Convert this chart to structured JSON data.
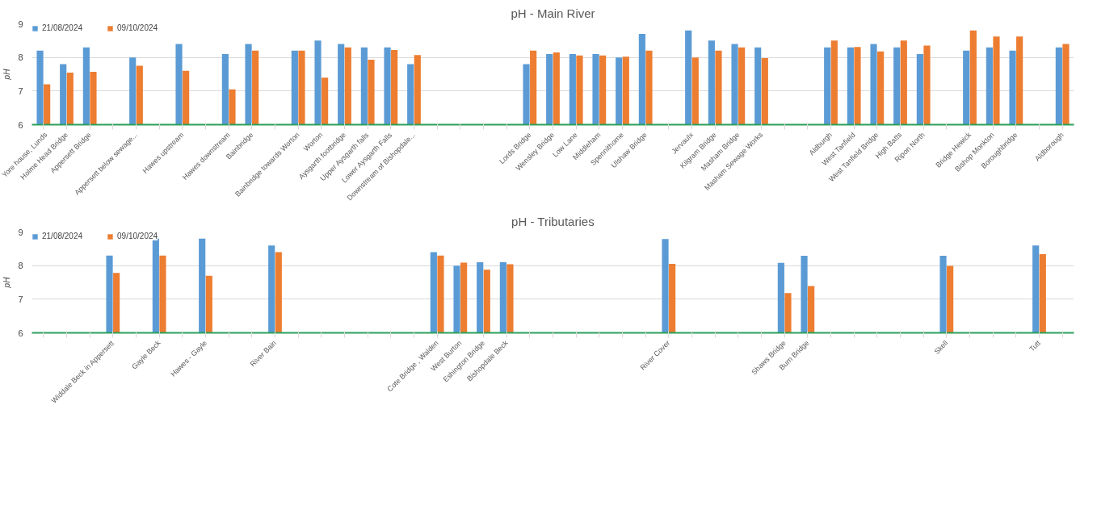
{
  "chart_data": [
    {
      "type": "bar",
      "title": "pH - Main River",
      "ylabel": "pH",
      "ylim": [
        6,
        9
      ],
      "yticks": [
        6,
        7,
        8,
        9
      ],
      "grid": "y",
      "legend": "top left",
      "categories": [
        "Yore house, Lunds",
        "Holme Head Bridge",
        "Appersett Bridge",
        null,
        "Appersett below sewage...",
        null,
        "Hawes upstream",
        null,
        "Hawes downstream",
        "Bainbridge",
        null,
        "Bainbridge towards Worton",
        "Worton",
        "Aysgarth footbridge",
        "Upper Aysgarth falls",
        "Lower Aysgarth Falls",
        "Downstream of Bishopdale...",
        null,
        null,
        null,
        null,
        "Lords Bridge",
        "Wensley Bridge",
        "Low Lane",
        "Middleham",
        "Spennithorne",
        "Ulshaw Bridge",
        null,
        "Jervaulx",
        "Kilgram Bridge",
        "Masham Bridge",
        "Masham Sewage Works",
        null,
        null,
        "Aldburgh",
        "West Tanfield",
        "West Tanfield Bridge",
        "High Batts",
        "Ripon North",
        null,
        "Bridge Hewick",
        "Bishop Monkton",
        "Boroughbridge",
        null,
        "Aldborough"
      ],
      "series": [
        {
          "name": "21/08/2024",
          "color": "#5b9bd5",
          "values": [
            8.2,
            7.8,
            8.3,
            null,
            8.0,
            null,
            8.4,
            null,
            8.1,
            8.4,
            null,
            8.2,
            8.5,
            8.4,
            8.3,
            8.3,
            7.8,
            null,
            null,
            null,
            null,
            7.8,
            8.1,
            8.1,
            8.1,
            8.0,
            8.7,
            null,
            8.8,
            8.5,
            8.4,
            8.3,
            null,
            null,
            8.3,
            8.3,
            8.4,
            8.3,
            8.1,
            null,
            8.2,
            8.3,
            8.2,
            null,
            8.3
          ]
        },
        {
          "name": "09/10/2024",
          "color": "#ed7d31",
          "values": [
            7.2,
            7.55,
            7.57,
            null,
            7.75,
            null,
            7.6,
            null,
            7.05,
            8.2,
            null,
            8.2,
            7.4,
            8.3,
            7.93,
            8.22,
            8.07,
            null,
            null,
            null,
            null,
            8.2,
            8.15,
            8.06,
            8.06,
            8.02,
            8.2,
            null,
            8.0,
            8.2,
            8.3,
            7.98,
            null,
            null,
            8.5,
            8.31,
            8.18,
            8.5,
            8.35,
            null,
            8.8,
            8.62,
            8.62,
            null,
            8.4
          ]
        }
      ]
    },
    {
      "type": "bar",
      "title": "pH - Tributaries",
      "ylabel": "pH",
      "ylim": [
        6,
        9
      ],
      "yticks": [
        6,
        7,
        8,
        9
      ],
      "grid": "y",
      "legend": "top left",
      "categories": [
        null,
        null,
        null,
        "Widdale Beck in Appersett",
        null,
        "Gayle Beck",
        null,
        "Hawes - Gayle",
        null,
        null,
        "River Bain",
        null,
        null,
        null,
        null,
        null,
        null,
        "Cote Bridge , Walden",
        "West Burton",
        "Eshington Bridge",
        "Bishopdale Beck",
        null,
        null,
        null,
        null,
        null,
        null,
        "River Cover",
        null,
        null,
        null,
        null,
        "Shaws Bridge",
        "Burn Bridge",
        null,
        null,
        null,
        null,
        null,
        "Skell",
        null,
        null,
        null,
        "Tutt",
        null
      ],
      "series": [
        {
          "name": "21/08/2024",
          "color": "#5b9bd5",
          "values": [
            null,
            null,
            null,
            8.3,
            null,
            8.8,
            null,
            8.8,
            null,
            null,
            8.6,
            null,
            null,
            null,
            null,
            null,
            null,
            8.4,
            8.0,
            8.1,
            8.1,
            null,
            null,
            null,
            null,
            null,
            null,
            8.79,
            null,
            null,
            null,
            null,
            8.08,
            8.29,
            null,
            null,
            null,
            null,
            null,
            8.29,
            null,
            null,
            null,
            8.6,
            null
          ]
        },
        {
          "name": "09/10/2024",
          "color": "#ed7d31",
          "values": [
            null,
            null,
            null,
            7.78,
            null,
            8.3,
            null,
            7.7,
            null,
            null,
            8.4,
            null,
            null,
            null,
            null,
            null,
            null,
            8.3,
            8.09,
            7.88,
            8.04,
            null,
            null,
            null,
            null,
            null,
            null,
            8.05,
            null,
            null,
            null,
            null,
            7.18,
            7.39,
            null,
            null,
            null,
            null,
            null,
            7.99,
            null,
            null,
            null,
            8.34,
            null
          ]
        }
      ]
    }
  ]
}
